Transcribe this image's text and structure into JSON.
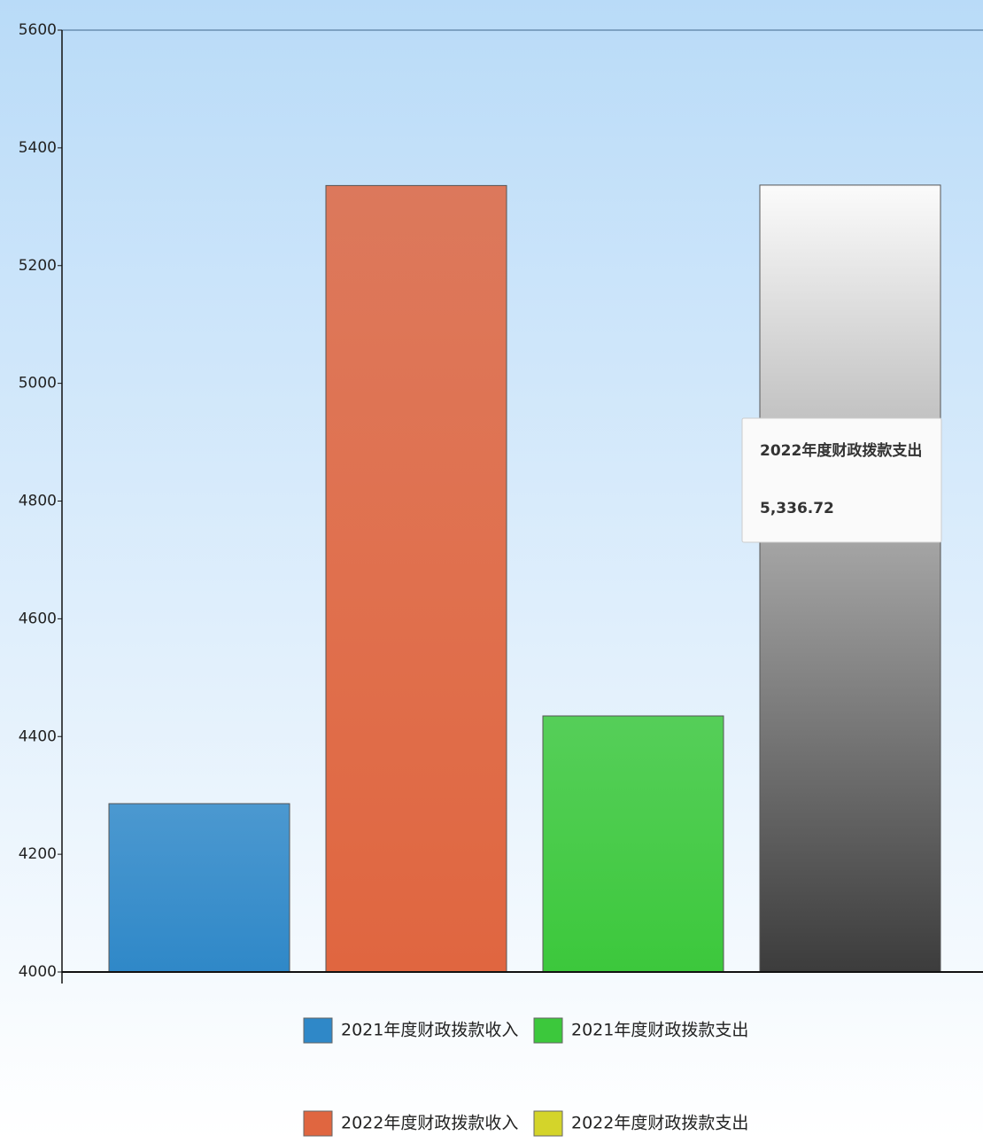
{
  "chart_data": {
    "type": "bar",
    "series": [
      {
        "name": "2021年度财政拨款收入",
        "color": "#2f88c8",
        "values": [
          4286
        ]
      },
      {
        "name": "2022年度财政拨款收入",
        "color": "#e06640",
        "values": [
          5336
        ]
      },
      {
        "name": "2021年度财政拨款支出",
        "color": "#3cc83c",
        "values": [
          4435
        ]
      },
      {
        "name": "2022年度财政拨款支出",
        "color": "#d4d42a",
        "values": [
          5336.72
        ],
        "value_labels": [
          "5,336.72"
        ]
      }
    ],
    "ylim": [
      4000,
      5600
    ],
    "yticks": [
      4000,
      4200,
      4400,
      4600,
      4800,
      5000,
      5200,
      5400,
      5600
    ],
    "tooltip": {
      "series": 3
    }
  }
}
